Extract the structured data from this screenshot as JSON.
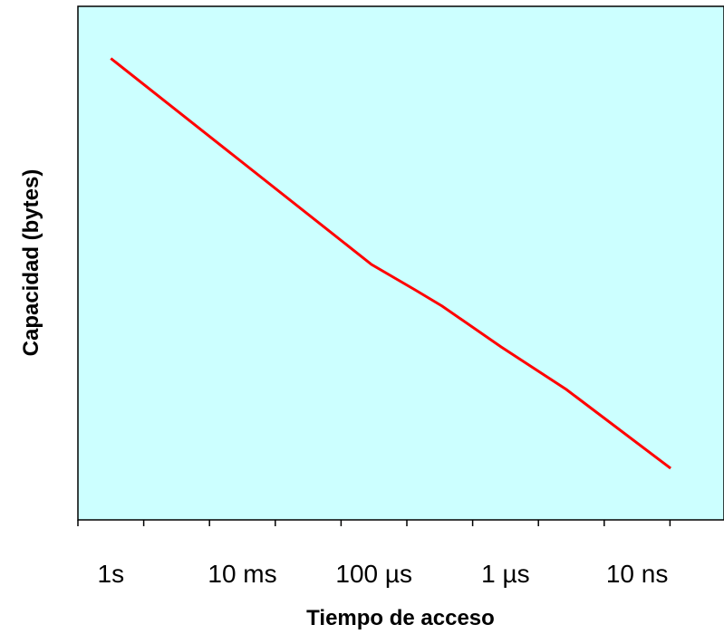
{
  "chart_data": {
    "type": "line",
    "title": "",
    "xlabel": "Tiempo de acceso",
    "ylabel": "Capacidad (bytes)",
    "x_tick_labels": [
      "1s",
      "10 ms",
      "100 µs",
      "1 µs",
      "10 ns"
    ],
    "x_scale": "log",
    "y_ticks_shown": false,
    "grid": false,
    "legend": "none",
    "background_color": "#ccffff",
    "line_color": "#ff0000",
    "series": [
      {
        "x": [
          "1s",
          "10 ns"
        ],
        "values": [
          0.9,
          0.1
        ],
        "relative_y": true
      }
    ]
  }
}
